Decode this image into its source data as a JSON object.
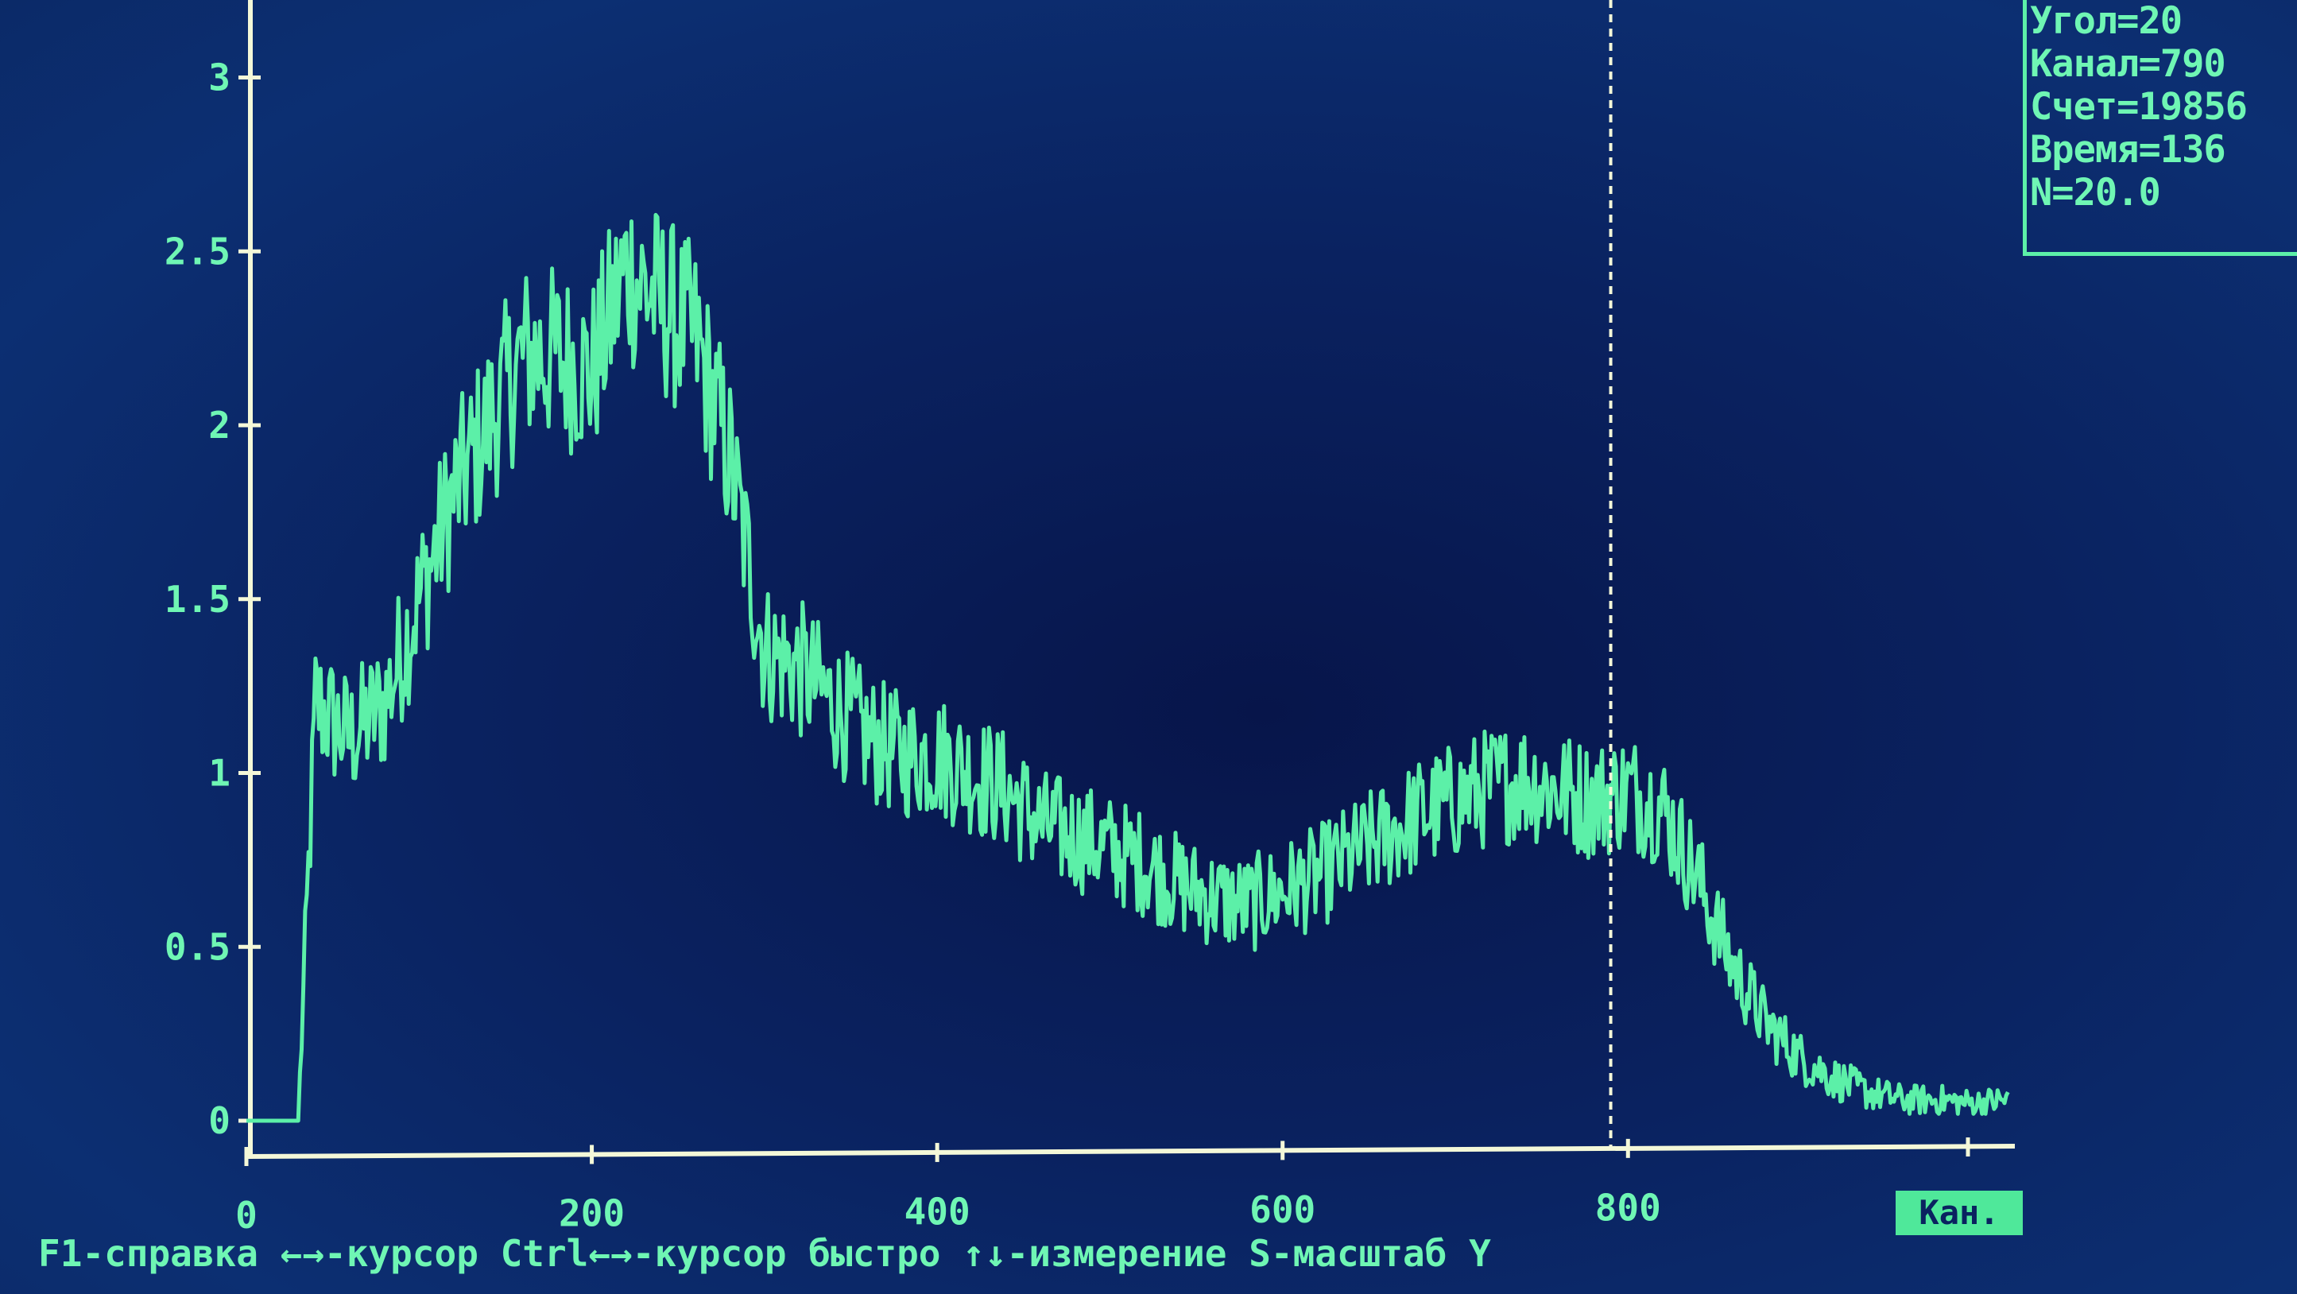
{
  "info_panel": {
    "lines": [
      "Угол=20",
      "Канал=790",
      "Счет=19856",
      "Время=136",
      "N=20.0"
    ]
  },
  "help_bar": {
    "text": "F1-справка ←→-курсор Ctrl←→-курсор быстро ↑↓-измерение S-масштаб Y"
  },
  "axis_labels": {
    "x_unit": "Кан."
  },
  "colors": {
    "background": "#0a2260",
    "trace": "#5cf0a8",
    "axis": "#f4f8d8",
    "text": "#6ff6b4",
    "cursor": "#f4f8d8"
  },
  "cursor": {
    "channel": 790
  },
  "chart_data": {
    "type": "line",
    "xlim": [
      0,
      1024
    ],
    "ylim": [
      0,
      3.2
    ],
    "x_ticks": [
      0,
      200,
      400,
      600,
      800
    ],
    "x_tick_labels": [
      "0",
      "200",
      "400",
      "600",
      "800"
    ],
    "y_ticks": [
      0,
      0.5,
      1,
      1.5,
      2,
      2.5,
      3
    ],
    "y_tick_labels": [
      "0",
      "0.5",
      "1",
      "1.5",
      "2",
      "2.5",
      "3"
    ],
    "grid": false,
    "series": [
      {
        "x": [
          0,
          30,
          40,
          60,
          80,
          100,
          120,
          140,
          160,
          180,
          200,
          220,
          240,
          260,
          280,
          300,
          320,
          340,
          360,
          380,
          400,
          420,
          440,
          460,
          480,
          500,
          520,
          540,
          560,
          580,
          600,
          620,
          640,
          660,
          680,
          700,
          720,
          740,
          760,
          780,
          800,
          820,
          840,
          860,
          880,
          900,
          920,
          940,
          960,
          980,
          1000,
          1020
        ],
        "y": [
          0,
          0,
          1.2,
          1.1,
          1.2,
          1.5,
          1.8,
          2.0,
          2.2,
          2.2,
          2.15,
          2.45,
          2.35,
          2.25,
          1.9,
          1.35,
          1.3,
          1.2,
          1.1,
          1.05,
          1.05,
          1.0,
          0.95,
          0.85,
          0.82,
          0.78,
          0.74,
          0.68,
          0.64,
          0.62,
          0.66,
          0.7,
          0.76,
          0.82,
          0.88,
          0.92,
          0.96,
          0.98,
          0.95,
          0.92,
          0.95,
          0.9,
          0.7,
          0.45,
          0.28,
          0.18,
          0.12,
          0.08,
          0.06,
          0.06,
          0.05,
          0.06
        ]
      }
    ]
  }
}
